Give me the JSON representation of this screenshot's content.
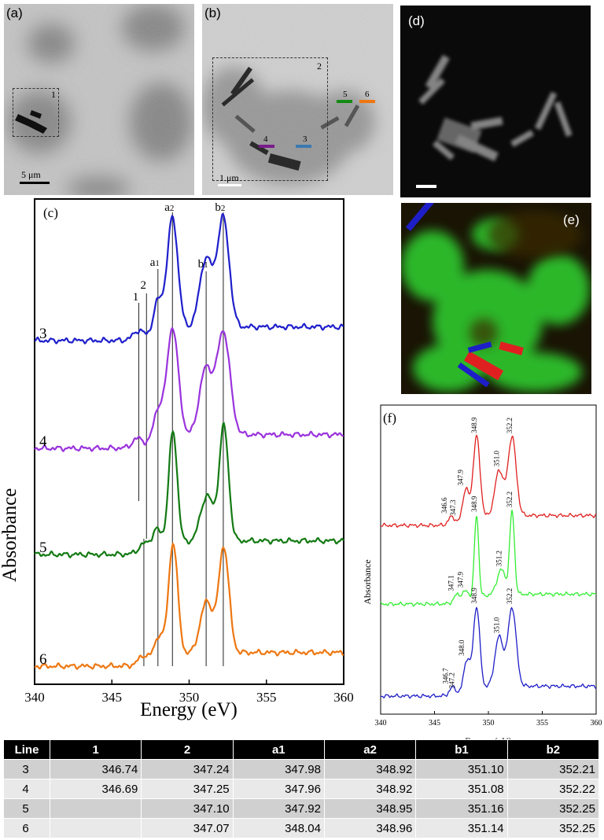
{
  "panels": {
    "a": {
      "label": "(a)",
      "box_label": "1",
      "scale_bar": "5 μm"
    },
    "b": {
      "label": "(b)",
      "box_label": "2",
      "scale_bar": "1 μm",
      "line_markers": [
        "4",
        "3",
        "5",
        "6"
      ]
    },
    "d": {
      "label": "(d)"
    },
    "e": {
      "label": "(e)"
    }
  },
  "colors": {
    "line3": "#1f1fcc",
    "line4": "#9a33dd",
    "line5": "#137a13",
    "line6": "#ee7711",
    "red": "#e02020",
    "green": "#33ee33",
    "blue": "#1e1ec8"
  },
  "chart_data": [
    {
      "panel": "(c)",
      "type": "line",
      "xlabel": "Energy (eV)",
      "ylabel": "Absorbance",
      "xlim": [
        340,
        360
      ],
      "xticks": [
        340,
        345,
        350,
        355,
        360
      ],
      "series": [
        {
          "name": "3",
          "color": "#1f1fcc",
          "features": [
            346.74,
            347.24,
            347.98,
            348.92,
            351.1,
            352.21
          ]
        },
        {
          "name": "4",
          "color": "#9a33dd",
          "features": [
            346.69,
            347.25,
            347.96,
            348.92,
            351.08,
            352.22
          ]
        },
        {
          "name": "5",
          "color": "#137a13",
          "features": [
            347.1,
            347.92,
            348.95,
            351.16,
            352.25
          ]
        },
        {
          "name": "6",
          "color": "#ee7711",
          "features": [
            347.07,
            348.04,
            348.96,
            351.14,
            352.25
          ]
        }
      ],
      "annotations": [
        "1",
        "2",
        "a1",
        "a2",
        "b1",
        "b2"
      ],
      "peak_labels": {
        "a2": "a2",
        "b2": "b2",
        "a1": "a1",
        "b1": "b1",
        "l1": "1",
        "l2": "2"
      }
    },
    {
      "panel": "(f)",
      "type": "line",
      "xlabel": "Energy (eV)",
      "ylabel": "Absorbance",
      "xlim": [
        340,
        360
      ],
      "xticks": [
        340,
        345,
        350,
        355,
        360
      ],
      "series": [
        {
          "color": "#e02020",
          "peaks": [
            346.6,
            347.3,
            347.9,
            348.9,
            351.0,
            352.2
          ],
          "peak_labels": [
            "346.6",
            "347.3",
            "347.9",
            "348.9",
            "351.0",
            "352.2"
          ]
        },
        {
          "color": "#33ee33",
          "peaks": [
            347.1,
            347.9,
            348.9,
            351.2,
            352.2
          ],
          "peak_labels": [
            "347.1",
            "347.9",
            "348.9",
            "351.2",
            "352.2"
          ]
        },
        {
          "color": "#1e1ec8",
          "peaks": [
            346.7,
            347.2,
            348.0,
            348.9,
            351.0,
            352.2
          ],
          "peak_labels": [
            "346.7",
            "347.2",
            "348.0",
            "348.9",
            "351.0",
            "352.2"
          ]
        }
      ]
    }
  ],
  "table": {
    "headers": [
      "Line",
      "1",
      "2",
      "a1",
      "a2",
      "b1",
      "b2"
    ],
    "rows": [
      [
        "3",
        "346.74",
        "347.24",
        "347.98",
        "348.92",
        "351.10",
        "352.21"
      ],
      [
        "4",
        "346.69",
        "347.25",
        "347.96",
        "348.92",
        "351.08",
        "352.22"
      ],
      [
        "5",
        "",
        "347.10",
        "347.92",
        "348.95",
        "351.16",
        "352.25"
      ],
      [
        "6",
        "",
        "347.07",
        "348.04",
        "348.96",
        "351.14",
        "352.25"
      ]
    ]
  }
}
